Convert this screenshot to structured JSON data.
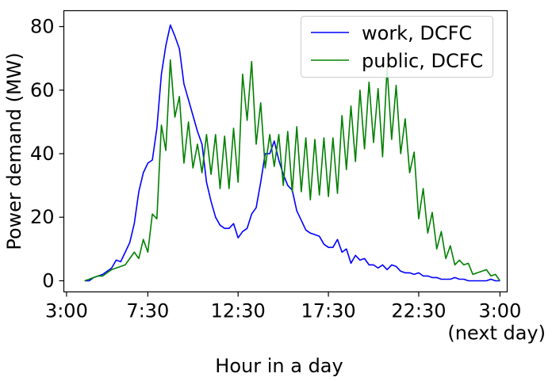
{
  "chart_data": {
    "type": "line",
    "xlabel": "Hour in a day",
    "ylabel": "Power demand (MW)",
    "xlim": [
      2.85,
      27.4
    ],
    "ylim": [
      -3.5,
      85
    ],
    "x_ticks": [
      {
        "value": 3,
        "lines": [
          "3:00"
        ]
      },
      {
        "value": 7.5,
        "lines": [
          "7:30"
        ]
      },
      {
        "value": 12.5,
        "lines": [
          "12:30"
        ]
      },
      {
        "value": 17.5,
        "lines": [
          "17:30"
        ]
      },
      {
        "value": 22.5,
        "lines": [
          "22:30"
        ]
      },
      {
        "value": 27,
        "lines": [
          "3:00",
          "(next day)"
        ]
      }
    ],
    "y_ticks": [
      0,
      20,
      40,
      60,
      80
    ],
    "legend_position": "top-right",
    "series": [
      {
        "name": "work, DCFC",
        "color": "#0000ff",
        "points": [
          [
            4,
            0
          ],
          [
            4.25,
            0
          ],
          [
            4.5,
            1
          ],
          [
            4.75,
            1.5
          ],
          [
            5,
            2
          ],
          [
            5.25,
            3
          ],
          [
            5.5,
            4
          ],
          [
            5.75,
            6.5
          ],
          [
            6,
            6
          ],
          [
            6.25,
            9
          ],
          [
            6.5,
            12
          ],
          [
            6.75,
            18
          ],
          [
            7,
            28
          ],
          [
            7.25,
            34
          ],
          [
            7.5,
            37
          ],
          [
            7.75,
            38
          ],
          [
            8,
            48
          ],
          [
            8.25,
            65
          ],
          [
            8.5,
            74
          ],
          [
            8.75,
            80.5
          ],
          [
            9,
            77
          ],
          [
            9.25,
            73
          ],
          [
            9.5,
            62
          ],
          [
            9.75,
            57
          ],
          [
            10,
            52
          ],
          [
            10.25,
            47
          ],
          [
            10.5,
            43
          ],
          [
            10.75,
            31
          ],
          [
            11,
            25
          ],
          [
            11.25,
            20
          ],
          [
            11.5,
            17.5
          ],
          [
            11.75,
            16.5
          ],
          [
            12,
            16.5
          ],
          [
            12.25,
            18
          ],
          [
            12.5,
            13.5
          ],
          [
            12.75,
            15.5
          ],
          [
            13,
            16.5
          ],
          [
            13.25,
            21
          ],
          [
            13.5,
            23
          ],
          [
            13.75,
            31
          ],
          [
            14,
            40
          ],
          [
            14.25,
            40
          ],
          [
            14.5,
            44
          ],
          [
            14.75,
            38
          ],
          [
            15,
            33.5
          ],
          [
            15.25,
            30
          ],
          [
            15.5,
            28.5
          ],
          [
            15.75,
            22
          ],
          [
            16,
            19
          ],
          [
            16.25,
            16
          ],
          [
            16.5,
            15
          ],
          [
            16.75,
            14.5
          ],
          [
            17,
            14
          ],
          [
            17.25,
            11.5
          ],
          [
            17.5,
            10.5
          ],
          [
            17.75,
            10.5
          ],
          [
            18,
            13
          ],
          [
            18.25,
            9
          ],
          [
            18.5,
            10
          ],
          [
            18.75,
            5.5
          ],
          [
            19,
            8
          ],
          [
            19.25,
            6.5
          ],
          [
            19.5,
            7
          ],
          [
            19.75,
            5
          ],
          [
            20,
            5
          ],
          [
            20.25,
            4
          ],
          [
            20.5,
            5
          ],
          [
            20.75,
            3.5
          ],
          [
            21,
            5
          ],
          [
            21.25,
            4.5
          ],
          [
            21.5,
            3
          ],
          [
            21.75,
            2.5
          ],
          [
            22,
            2.5
          ],
          [
            22.25,
            2
          ],
          [
            22.5,
            2.5
          ],
          [
            22.75,
            1.5
          ],
          [
            23,
            1.5
          ],
          [
            23.25,
            1
          ],
          [
            23.5,
            1
          ],
          [
            23.75,
            0.5
          ],
          [
            24,
            0.5
          ],
          [
            24.25,
            0.5
          ],
          [
            24.5,
            1
          ],
          [
            24.75,
            0.5
          ],
          [
            25,
            0.5
          ],
          [
            25.25,
            0
          ],
          [
            25.5,
            0
          ],
          [
            25.75,
            0
          ],
          [
            26,
            0
          ],
          [
            26.25,
            0
          ],
          [
            26.5,
            0.5
          ],
          [
            26.75,
            0
          ],
          [
            27,
            0
          ]
        ]
      },
      {
        "name": "public, DCFC",
        "color": "#008000",
        "points": [
          [
            4,
            0
          ],
          [
            4.25,
            0.5
          ],
          [
            4.5,
            1
          ],
          [
            4.75,
            1.5
          ],
          [
            5,
            1.5
          ],
          [
            5.25,
            2.5
          ],
          [
            5.5,
            3.5
          ],
          [
            5.75,
            4
          ],
          [
            6,
            4.5
          ],
          [
            6.25,
            5
          ],
          [
            6.5,
            7
          ],
          [
            6.75,
            9
          ],
          [
            7,
            7
          ],
          [
            7.25,
            13
          ],
          [
            7.5,
            9
          ],
          [
            7.75,
            21
          ],
          [
            8,
            19.5
          ],
          [
            8.25,
            49
          ],
          [
            8.5,
            41
          ],
          [
            8.75,
            69.5
          ],
          [
            9,
            51.5
          ],
          [
            9.25,
            58
          ],
          [
            9.5,
            37
          ],
          [
            9.75,
            50
          ],
          [
            10,
            35.5
          ],
          [
            10.25,
            43
          ],
          [
            10.5,
            34
          ],
          [
            10.75,
            46
          ],
          [
            11,
            33.5
          ],
          [
            11.25,
            46
          ],
          [
            11.5,
            29
          ],
          [
            11.75,
            45.5
          ],
          [
            12,
            29
          ],
          [
            12.25,
            48
          ],
          [
            12.5,
            31
          ],
          [
            12.75,
            65
          ],
          [
            13,
            50.5
          ],
          [
            13.25,
            69
          ],
          [
            13.5,
            43
          ],
          [
            13.75,
            56
          ],
          [
            14,
            35.5
          ],
          [
            14.25,
            46
          ],
          [
            14.5,
            36
          ],
          [
            14.75,
            46
          ],
          [
            15,
            30
          ],
          [
            15.25,
            47
          ],
          [
            15.5,
            28
          ],
          [
            15.75,
            48.5
          ],
          [
            16,
            28
          ],
          [
            16.25,
            45
          ],
          [
            16.5,
            25.5
          ],
          [
            16.75,
            44.5
          ],
          [
            17,
            27
          ],
          [
            17.25,
            45
          ],
          [
            17.5,
            26.5
          ],
          [
            17.75,
            45
          ],
          [
            18,
            27.5
          ],
          [
            18.25,
            52
          ],
          [
            18.5,
            35
          ],
          [
            18.75,
            55
          ],
          [
            19,
            37.5
          ],
          [
            19.25,
            60
          ],
          [
            19.5,
            41.5
          ],
          [
            19.75,
            62.5
          ],
          [
            20,
            43.5
          ],
          [
            20.25,
            60.5
          ],
          [
            20.5,
            39
          ],
          [
            20.75,
            67
          ],
          [
            21,
            44.5
          ],
          [
            21.25,
            61.5
          ],
          [
            21.5,
            40
          ],
          [
            21.75,
            51
          ],
          [
            22,
            34
          ],
          [
            22.25,
            40.5
          ],
          [
            22.5,
            19.5
          ],
          [
            22.75,
            29
          ],
          [
            23,
            15
          ],
          [
            23.25,
            21.5
          ],
          [
            23.5,
            10
          ],
          [
            23.75,
            15.5
          ],
          [
            24,
            7
          ],
          [
            24.25,
            11
          ],
          [
            24.5,
            5
          ],
          [
            24.75,
            6.5
          ],
          [
            25,
            5
          ],
          [
            25.25,
            5.5
          ],
          [
            25.5,
            2
          ],
          [
            25.75,
            2.5
          ],
          [
            26,
            3
          ],
          [
            26.25,
            3.5
          ],
          [
            26.5,
            1.5
          ],
          [
            26.75,
            2
          ],
          [
            27,
            0
          ]
        ]
      }
    ]
  }
}
